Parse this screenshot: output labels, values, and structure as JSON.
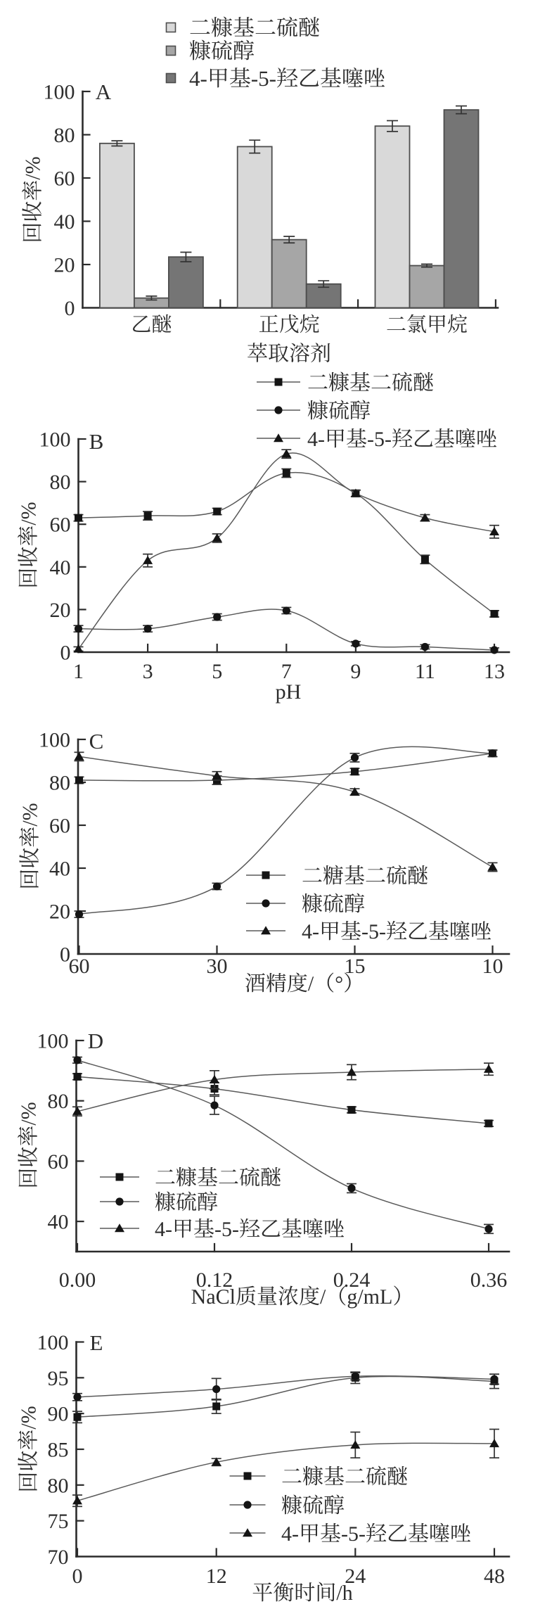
{
  "figure": {
    "ylabel": "回收率/%"
  },
  "chart_data": [
    {
      "panel": "A",
      "type": "bar",
      "title": "A",
      "xlabel": "萃取溶剂",
      "ylabel": "回收率/%",
      "categories": [
        "乙醚",
        "正戊烷",
        "二氯甲烷"
      ],
      "yticks": [
        0,
        20,
        40,
        60,
        80,
        100
      ],
      "ylim": [
        0,
        100
      ],
      "legend_position": "top",
      "grid": false,
      "series": [
        {
          "name": "二糠基二硫醚",
          "fill": "#d9d9d9",
          "values": [
            76,
            74.5,
            84
          ],
          "errors": [
            1.2,
            3,
            2.5
          ]
        },
        {
          "name": "糠硫醇",
          "fill": "#a6a6a6",
          "values": [
            4.5,
            31.5,
            19.5
          ],
          "errors": [
            0.9,
            1.5,
            0.7
          ]
        },
        {
          "name": "4-甲基-5-羟乙基噻唑",
          "fill": "#757575",
          "values": [
            23.5,
            11,
            91.5
          ],
          "errors": [
            2.2,
            1.5,
            1.8
          ]
        }
      ]
    },
    {
      "panel": "B",
      "type": "line",
      "title": "B",
      "xlabel": "pH",
      "ylabel": "回收率/%",
      "x": [
        1,
        3,
        5,
        7,
        9,
        11,
        13
      ],
      "xticks": [
        "1",
        "3",
        "5",
        "7",
        "9",
        "11",
        "13"
      ],
      "yticks": [
        0,
        20,
        40,
        60,
        80,
        100
      ],
      "ylim": [
        0,
        100
      ],
      "legend_position": "top",
      "grid": false,
      "series": [
        {
          "name": "二糠基二硫醚",
          "marker": "square",
          "values": [
            63,
            64,
            66,
            84,
            74.5,
            43.5,
            18
          ],
          "errors": [
            1.5,
            2,
            1.5,
            2,
            1.5,
            2,
            1.5
          ]
        },
        {
          "name": "糠硫醇",
          "marker": "circle",
          "values": [
            11,
            11,
            16.5,
            19.5,
            4,
            2.5,
            1
          ],
          "errors": [
            1.5,
            1.5,
            1.5,
            1.5,
            1,
            1,
            1
          ]
        },
        {
          "name": "4-甲基-5-羟乙基噻唑",
          "marker": "triangle",
          "values": [
            1.5,
            43,
            53.5,
            93,
            74.5,
            63,
            56.5
          ],
          "errors": [
            1,
            3,
            2,
            2,
            1.5,
            1.5,
            3
          ]
        }
      ]
    },
    {
      "panel": "C",
      "type": "line",
      "title": "C",
      "xlabel": "酒精度/（°）",
      "ylabel": "回收率/%",
      "x": [
        60,
        30,
        15,
        10
      ],
      "xticks": [
        "60",
        "30",
        "15",
        "10"
      ],
      "yticks": [
        0,
        20,
        40,
        60,
        80,
        100
      ],
      "ylim": [
        0,
        100
      ],
      "legend_position": "inside-right",
      "grid": false,
      "series": [
        {
          "name": "二糖基二硫醚",
          "marker": "square",
          "values": [
            81,
            81,
            85,
            93.5
          ],
          "errors": [
            1.5,
            2,
            1.5,
            1.5
          ]
        },
        {
          "name": "糠硫醇",
          "marker": "circle",
          "values": [
            18.5,
            31.5,
            91.5,
            93.5
          ],
          "errors": [
            1.5,
            1.5,
            2,
            1.5
          ]
        },
        {
          "name": "4-甲基-5-羟乙基噻唑",
          "marker": "triangle",
          "values": [
            92,
            83,
            75.5,
            40.5
          ],
          "errors": [
            2,
            2,
            1.5,
            2
          ]
        }
      ]
    },
    {
      "panel": "D",
      "type": "line",
      "title": "D",
      "xlabel": "NaCl质量浓度/（g/mL）",
      "ylabel": "回收率/%",
      "x": [
        0.0,
        0.12,
        0.24,
        0.36
      ],
      "xticks": [
        "0.00",
        "0.12",
        "0.24",
        "0.36"
      ],
      "yticks": [
        40,
        60,
        80,
        100
      ],
      "ylim": [
        30,
        100
      ],
      "legend_position": "inside-left",
      "grid": false,
      "series": [
        {
          "name": "二糠基二硫醚",
          "marker": "square",
          "values": [
            88,
            84,
            77,
            72.5
          ],
          "errors": [
            1,
            2,
            1,
            1
          ]
        },
        {
          "name": "糠硫醇",
          "marker": "circle",
          "values": [
            93.5,
            78.5,
            51,
            37.5
          ],
          "errors": [
            1,
            3,
            1.5,
            1.5
          ]
        },
        {
          "name": "4-甲基-5-羟乙基噻唑",
          "marker": "triangle",
          "values": [
            76.5,
            87,
            89.5,
            90.5
          ],
          "errors": [
            1.5,
            3,
            2.5,
            2
          ]
        }
      ]
    },
    {
      "panel": "E",
      "type": "line",
      "title": "E",
      "xlabel": "平衡时间/h",
      "ylabel": "回收率/%",
      "x": [
        0,
        12,
        24,
        48
      ],
      "xticks": [
        "0",
        "12",
        "24",
        "48"
      ],
      "yticks": [
        70,
        75,
        80,
        85,
        90,
        95,
        100
      ],
      "ylim": [
        70,
        100
      ],
      "legend_position": "inside-right",
      "grid": false,
      "series": [
        {
          "name": "二糠基二硫醚",
          "marker": "square",
          "values": [
            89.5,
            91,
            95,
            94.5
          ],
          "errors": [
            0.8,
            1,
            0.8,
            1
          ]
        },
        {
          "name": "糠硫醇",
          "marker": "circle",
          "values": [
            92.3,
            93.4,
            95.2,
            94.8
          ],
          "errors": [
            0.5,
            1.5,
            0.5,
            0.7
          ]
        },
        {
          "name": "4-甲基-5-羟乙基噻唑",
          "marker": "triangle",
          "values": [
            77.8,
            83.2,
            85.6,
            85.8
          ],
          "errors": [
            0.8,
            0.5,
            1.8,
            2
          ]
        }
      ]
    }
  ]
}
